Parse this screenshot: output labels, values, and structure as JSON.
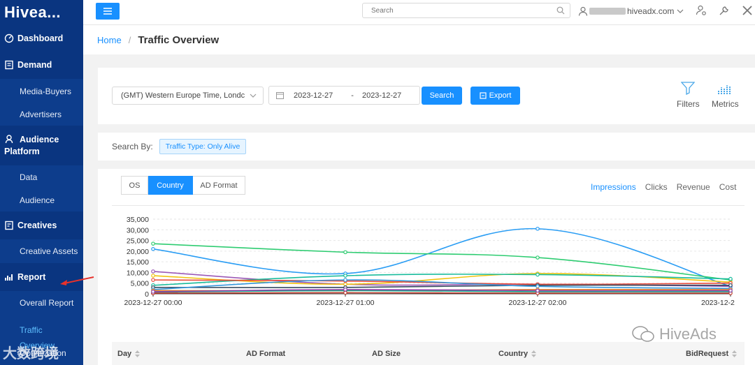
{
  "brand": {
    "name": "Hivea..."
  },
  "sidebar": {
    "dashboard": "Dashboard",
    "demand": "Demand",
    "media_buyers": "Media-Buyers",
    "advertisers": "Advertisers",
    "audience_platform": "Audience Platform",
    "data": "Data",
    "audience": "Audience",
    "creatives": "Creatives",
    "creative_assets": "Creative Assets",
    "report": "Report",
    "overall_report": "Overall Report",
    "traffic_overview": "Traffic Overview",
    "optimization": "Optimization"
  },
  "topbar": {
    "search_placeholder": "Search",
    "user_email_suffix": "hiveadx.com"
  },
  "breadcrumb": {
    "home": "Home",
    "sep": "/",
    "title": "Traffic Overview"
  },
  "filters": {
    "timezone": "(GMT) Western Europe Time, Londc",
    "date_start": "2023-12-27",
    "date_sep": "-",
    "date_end": "2023-12-27",
    "search_label": "Search",
    "export_label": "Export",
    "filters_label": "Filters",
    "metrics_label": "Metrics"
  },
  "search_by": {
    "label": "Search By:",
    "tag": "Traffic Type: Only Alive"
  },
  "dimension_tabs": [
    {
      "label": "OS",
      "active": false
    },
    {
      "label": "Country",
      "active": true
    },
    {
      "label": "AD Format",
      "active": false
    }
  ],
  "metric_tabs": [
    {
      "label": "Impressions",
      "active": true
    },
    {
      "label": "Clicks",
      "active": false
    },
    {
      "label": "Revenue",
      "active": false
    },
    {
      "label": "Cost",
      "active": false
    }
  ],
  "chart_data": {
    "type": "line",
    "x": [
      "2023-12-27 00:00",
      "2023-12-27 01:00",
      "2023-12-27 02:00",
      "2023-12-2"
    ],
    "ylim": [
      0,
      35000
    ],
    "yticks": [
      "0",
      "5,000",
      "10,000",
      "15,000",
      "20,000",
      "25,000",
      "30,000",
      "35,000"
    ],
    "grid": true,
    "series": [
      {
        "color": "#2a9df4",
        "values": [
          21000,
          9500,
          30500,
          3500
        ]
      },
      {
        "color": "#2ecc71",
        "values": [
          23500,
          19500,
          17000,
          6500
        ]
      },
      {
        "color": "#9b59b6",
        "values": [
          10500,
          4500,
          4500,
          3500
        ]
      },
      {
        "color": "#f1c40f",
        "values": [
          8500,
          4500,
          9500,
          5500
        ]
      },
      {
        "color": "#1abc9c",
        "values": [
          4000,
          8500,
          9000,
          7000
        ]
      },
      {
        "color": "#e74c3c",
        "values": [
          6500,
          6000,
          4500,
          5000
        ]
      },
      {
        "color": "#34495e",
        "values": [
          3000,
          3000,
          4000,
          4000
        ]
      },
      {
        "color": "#3498db",
        "values": [
          2000,
          6500,
          3500,
          2500
        ]
      },
      {
        "color": "#e67e22",
        "values": [
          1500,
          1500,
          2000,
          2000
        ]
      },
      {
        "color": "#16a085",
        "values": [
          800,
          1500,
          1000,
          1000
        ]
      },
      {
        "color": "#c0392b",
        "values": [
          300,
          500,
          300,
          300
        ]
      },
      {
        "color": "#8e44ad",
        "values": [
          1000,
          2000,
          1500,
          1500
        ]
      }
    ]
  },
  "table": {
    "headers": [
      "Day",
      "AD Format",
      "AD Size",
      "Country",
      "BidRequest"
    ]
  },
  "watermarks": {
    "left": "大数跨境",
    "right": "HiveAds"
  }
}
